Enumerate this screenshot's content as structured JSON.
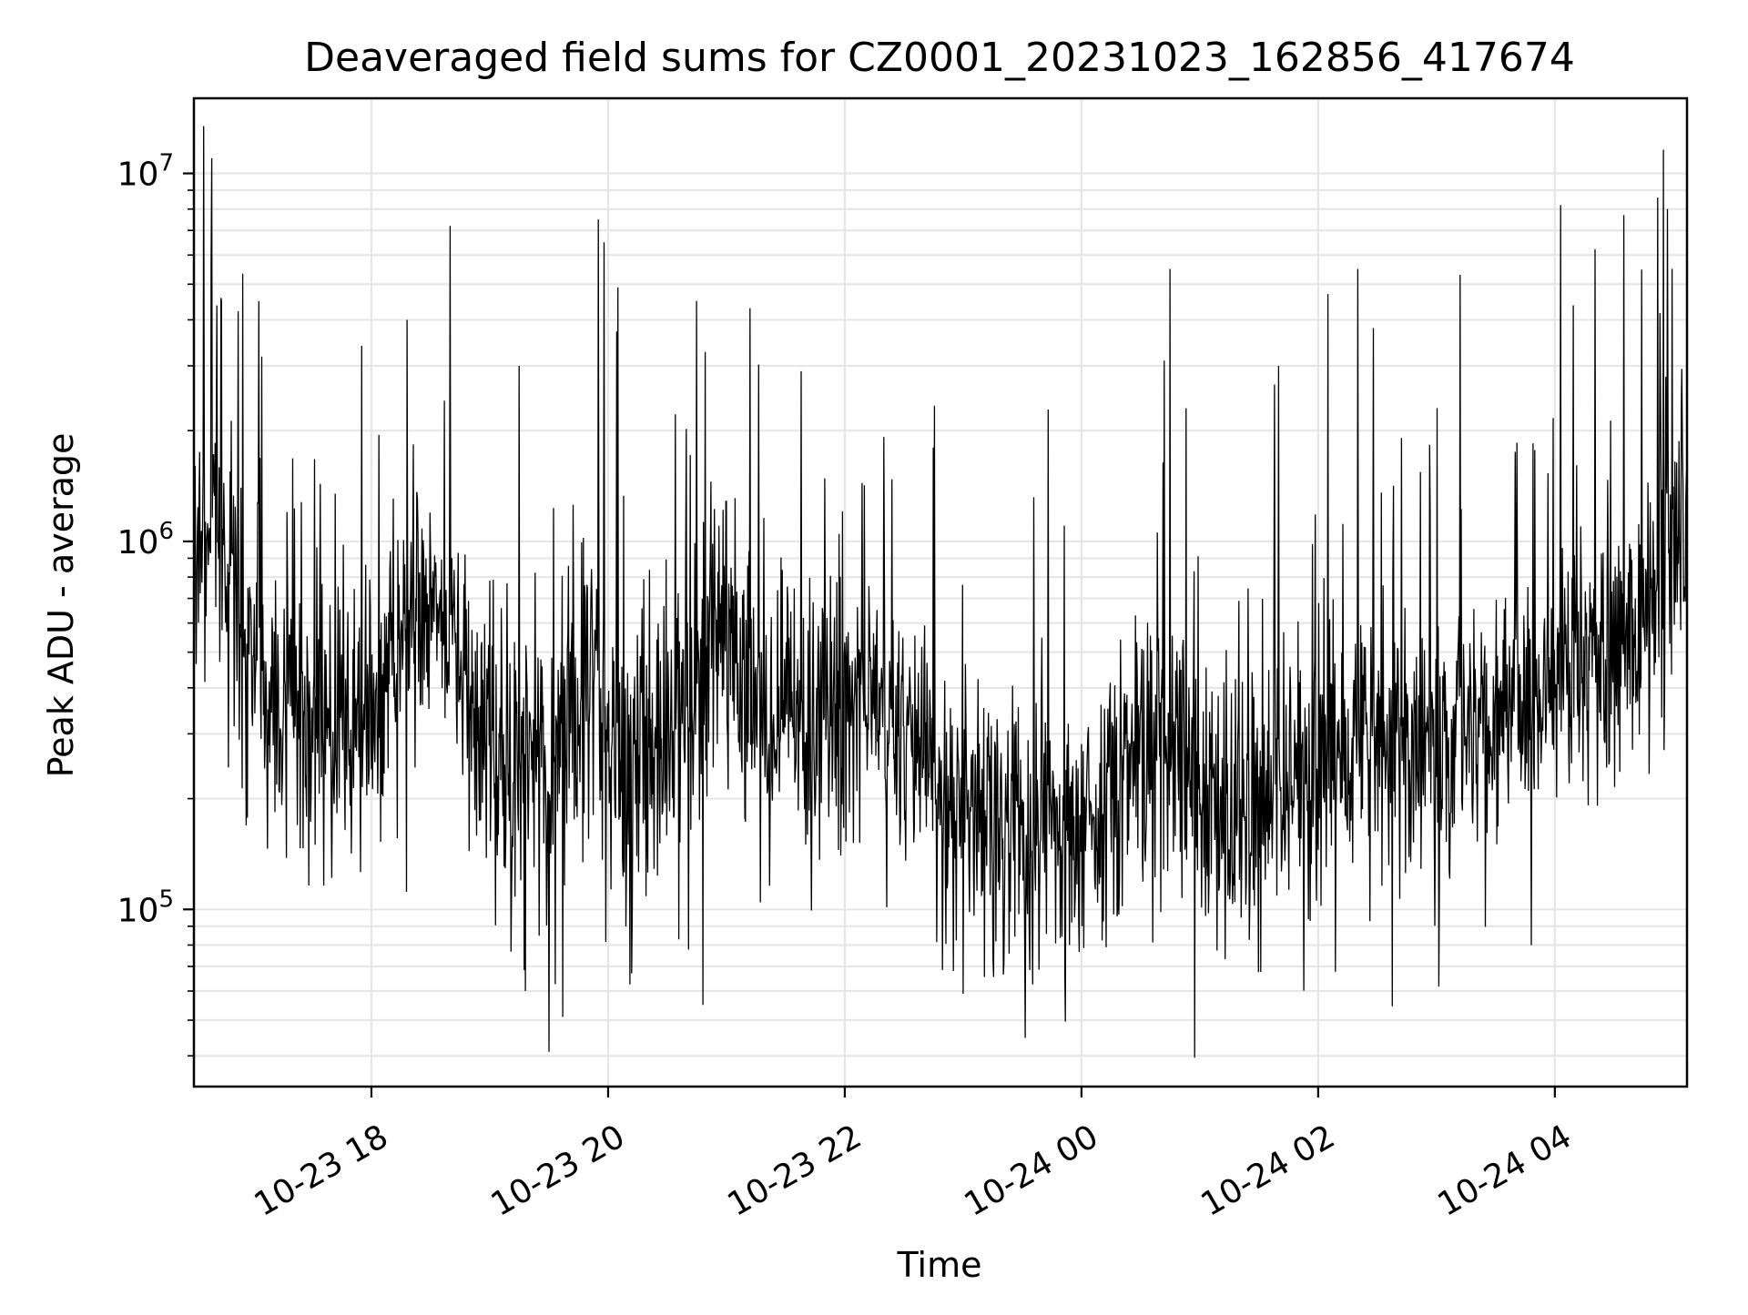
{
  "chart_data": {
    "type": "line",
    "title": "Deaveraged field sums for CZ0001_20231023_162856_417674",
    "xlabel": "Time",
    "ylabel": "Peak ADU - average",
    "yscale": "log",
    "grid": true,
    "legend": "none",
    "xlim": [
      "2023-10-23T16:30",
      "2023-10-24T05:07"
    ],
    "ylim": [
      33000,
      16000000
    ],
    "x_ticks": [
      {
        "value": "2023-10-23T18:00",
        "label": "10-23 18"
      },
      {
        "value": "2023-10-23T20:00",
        "label": "10-23 20"
      },
      {
        "value": "2023-10-23T22:00",
        "label": "10-23 22"
      },
      {
        "value": "2023-10-24T00:00",
        "label": "10-24 00"
      },
      {
        "value": "2023-10-24T02:00",
        "label": "10-24 02"
      },
      {
        "value": "2023-10-24T04:00",
        "label": "10-24 04"
      }
    ],
    "y_ticks": [
      {
        "value": 100000,
        "base": "10",
        "exp": "5"
      },
      {
        "value": 1000000,
        "base": "10",
        "exp": "6"
      },
      {
        "value": 10000000,
        "base": "10",
        "exp": "7"
      }
    ],
    "line_color": "#000000",
    "grid_color": "#e6e6e6",
    "series": [
      {
        "x": [
          "2023-10-23T16:30",
          "2023-10-23T16:40",
          "2023-10-23T16:50",
          "2023-10-23T17:00",
          "2023-10-23T17:10",
          "2023-10-23T17:20",
          "2023-10-23T17:30",
          "2023-10-23T17:40",
          "2023-10-23T17:50",
          "2023-10-23T18:00",
          "2023-10-23T18:10",
          "2023-10-23T18:20",
          "2023-10-23T18:30",
          "2023-10-23T18:40",
          "2023-10-23T18:50",
          "2023-10-23T19:00",
          "2023-10-23T19:10",
          "2023-10-23T19:20",
          "2023-10-23T19:30",
          "2023-10-23T19:40",
          "2023-10-23T19:50",
          "2023-10-23T20:00",
          "2023-10-23T20:10",
          "2023-10-23T20:20",
          "2023-10-23T20:30",
          "2023-10-23T20:40",
          "2023-10-23T20:50",
          "2023-10-23T21:00",
          "2023-10-23T21:10",
          "2023-10-23T21:20",
          "2023-10-23T21:30",
          "2023-10-23T21:40",
          "2023-10-23T21:50",
          "2023-10-23T22:00",
          "2023-10-23T22:10",
          "2023-10-23T22:20",
          "2023-10-23T22:30",
          "2023-10-23T22:40",
          "2023-10-23T22:50",
          "2023-10-23T23:00",
          "2023-10-23T23:10",
          "2023-10-23T23:20",
          "2023-10-23T23:30",
          "2023-10-23T23:40",
          "2023-10-23T23:50",
          "2023-10-24T00:00",
          "2023-10-24T00:10",
          "2023-10-24T00:20",
          "2023-10-24T00:30",
          "2023-10-24T00:40",
          "2023-10-24T00:50",
          "2023-10-24T01:00",
          "2023-10-24T01:10",
          "2023-10-24T01:20",
          "2023-10-24T01:30",
          "2023-10-24T01:40",
          "2023-10-24T01:50",
          "2023-10-24T02:00",
          "2023-10-24T02:10",
          "2023-10-24T02:20",
          "2023-10-24T02:30",
          "2023-10-24T02:40",
          "2023-10-24T02:50",
          "2023-10-24T03:00",
          "2023-10-24T03:10",
          "2023-10-24T03:20",
          "2023-10-24T03:30",
          "2023-10-24T03:40",
          "2023-10-24T03:50",
          "2023-10-24T04:00",
          "2023-10-24T04:10",
          "2023-10-24T04:20",
          "2023-10-24T04:30",
          "2023-10-24T04:40",
          "2023-10-24T04:50",
          "2023-10-24T05:00",
          "2023-10-24T05:07"
        ],
        "y": [
          900000,
          1200000,
          800000,
          500000,
          400000,
          350000,
          330000,
          330000,
          320000,
          350000,
          500000,
          650000,
          600000,
          500000,
          400000,
          280000,
          250000,
          230000,
          220000,
          320000,
          400000,
          300000,
          250000,
          250000,
          270000,
          330000,
          450000,
          650000,
          420000,
          340000,
          320000,
          330000,
          340000,
          370000,
          390000,
          350000,
          300000,
          250000,
          210000,
          190000,
          180000,
          170000,
          160000,
          150000,
          155000,
          165000,
          190000,
          220000,
          270000,
          300000,
          270000,
          230000,
          190000,
          185000,
          190000,
          200000,
          190000,
          200000,
          230000,
          280000,
          310000,
          300000,
          270000,
          250000,
          260000,
          280000,
          310000,
          340000,
          380000,
          420000,
          480000,
          500000,
          560000,
          620000,
          700000,
          1100000,
          1300000
        ],
        "peaks": [
          {
            "x": "2023-10-23T16:39",
            "y": 11000000
          },
          {
            "x": "2023-10-23T16:44",
            "y": 4500000
          },
          {
            "x": "2023-10-23T17:55",
            "y": 3400000
          },
          {
            "x": "2023-10-23T18:18",
            "y": 4000000
          },
          {
            "x": "2023-10-23T18:40",
            "y": 7200000
          },
          {
            "x": "2023-10-23T19:15",
            "y": 3000000
          },
          {
            "x": "2023-10-23T19:55",
            "y": 7500000
          },
          {
            "x": "2023-10-23T19:58",
            "y": 6500000
          },
          {
            "x": "2023-10-23T20:05",
            "y": 4900000
          },
          {
            "x": "2023-10-23T20:45",
            "y": 4500000
          },
          {
            "x": "2023-10-23T21:12",
            "y": 4300000
          },
          {
            "x": "2023-10-23T21:38",
            "y": 2900000
          },
          {
            "x": "2023-10-23T22:45",
            "y": 1800000
          },
          {
            "x": "2023-10-24T00:42",
            "y": 3100000
          },
          {
            "x": "2023-10-24T00:45",
            "y": 2100000
          },
          {
            "x": "2023-10-24T00:45",
            "y": 5500000
          },
          {
            "x": "2023-10-24T00:53",
            "y": 2300000
          },
          {
            "x": "2023-10-24T01:40",
            "y": 3000000
          },
          {
            "x": "2023-10-24T02:05",
            "y": 4700000
          },
          {
            "x": "2023-10-24T02:20",
            "y": 5500000
          },
          {
            "x": "2023-10-24T02:28",
            "y": 3800000
          },
          {
            "x": "2023-10-24T03:12",
            "y": 5300000
          },
          {
            "x": "2023-10-24T04:03",
            "y": 8200000
          },
          {
            "x": "2023-10-24T04:35",
            "y": 7700000
          },
          {
            "x": "2023-10-24T04:55",
            "y": 11600000
          },
          {
            "x": "2023-10-24T04:57",
            "y": 8000000
          }
        ],
        "dips": [
          {
            "x": "2023-10-23T19:18",
            "y": 60000
          },
          {
            "x": "2023-10-23T19:30",
            "y": 41000
          },
          {
            "x": "2023-10-23T19:37",
            "y": 51000
          },
          {
            "x": "2023-10-23T20:12",
            "y": 67000
          },
          {
            "x": "2023-10-23T20:48",
            "y": 55000
          },
          {
            "x": "2023-10-23T23:00",
            "y": 59000
          },
          {
            "x": "2023-10-23T22:55",
            "y": 68000
          }
        ]
      }
    ]
  }
}
